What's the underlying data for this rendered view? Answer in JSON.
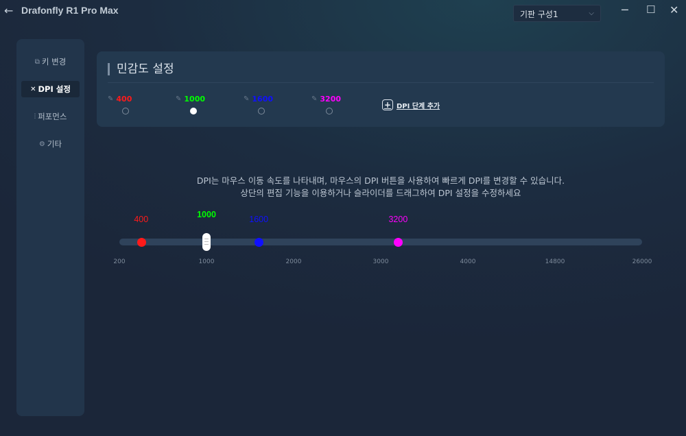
{
  "window": {
    "title": "Drafonfly R1 Pro Max",
    "profile": "기판 구성1"
  },
  "sidebar": {
    "items": [
      {
        "label": "키 변경",
        "icon": "key-icon",
        "active": false
      },
      {
        "label": "DPI 설정",
        "icon": "dpi-cross-icon",
        "active": true
      },
      {
        "label": "퍼포먼스",
        "icon": "sliders-icon",
        "active": false
      },
      {
        "label": "기타",
        "icon": "gear-icon",
        "active": false
      }
    ]
  },
  "card": {
    "title": "민감도 설정",
    "add_label": "DPI 단계 추가"
  },
  "dpi_levels": [
    {
      "value": "400",
      "color": "#ff1a1a",
      "selected": false
    },
    {
      "value": "1000",
      "color": "#00ff00",
      "selected": true
    },
    {
      "value": "1600",
      "color": "#1010ff",
      "selected": false
    },
    {
      "value": "3200",
      "color": "#ff00ff",
      "selected": false
    }
  ],
  "description": {
    "line1": "DPI는 마우스 이동 속도를 나타내며, 마우스의 DPI 버튼을 사용하여 빠르게 DPI를 변경할 수 있습니다.",
    "line2": "상단의 편집 기능을 이용하거나 슬라이더를 드래그하여 DPI 설정을 수정하세요"
  },
  "slider": {
    "ticks": [
      "200",
      "1000",
      "2000",
      "3000",
      "4000",
      "14800",
      "26000"
    ]
  }
}
